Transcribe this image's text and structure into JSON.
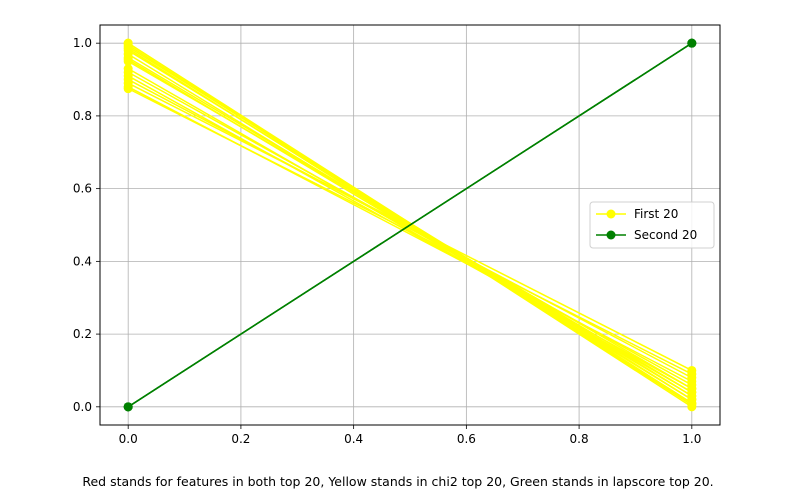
{
  "chart_data": {
    "type": "line",
    "title": "",
    "xlabel": "",
    "ylabel": "",
    "xlim": [
      -0.05,
      1.05
    ],
    "ylim": [
      -0.05,
      1.05
    ],
    "x_ticks": [
      0.0,
      0.2,
      0.4,
      0.6,
      0.8,
      1.0
    ],
    "y_ticks": [
      0.0,
      0.2,
      0.4,
      0.6,
      0.8,
      1.0
    ],
    "x_tick_labels": [
      "0.0",
      "0.2",
      "0.4",
      "0.6",
      "0.8",
      "1.0"
    ],
    "y_tick_labels": [
      "0.0",
      "0.2",
      "0.4",
      "0.6",
      "0.8",
      "1.0"
    ],
    "grid": true,
    "legend_position": "center-right",
    "series": [
      {
        "name": "First 20",
        "color": "#ffff00",
        "marker": "circle",
        "lines": [
          [
            [
              0,
              1.0
            ],
            [
              1,
              0.0
            ]
          ],
          [
            [
              0,
              1.0
            ],
            [
              1,
              0.01
            ]
          ],
          [
            [
              0,
              0.995
            ],
            [
              1,
              0.005
            ]
          ],
          [
            [
              0,
              0.99
            ],
            [
              1,
              0.02
            ]
          ],
          [
            [
              0,
              0.985
            ],
            [
              1,
              0.01
            ]
          ],
          [
            [
              0,
              0.98
            ],
            [
              1,
              0.03
            ]
          ],
          [
            [
              0,
              0.97
            ],
            [
              1,
              0.02
            ]
          ],
          [
            [
              0,
              0.96
            ],
            [
              1,
              0.04
            ]
          ],
          [
            [
              0,
              0.955
            ],
            [
              1,
              0.03
            ]
          ],
          [
            [
              0,
              0.95
            ],
            [
              1,
              0.05
            ]
          ],
          [
            [
              0,
              0.93
            ],
            [
              1,
              0.04
            ]
          ],
          [
            [
              0,
              0.92
            ],
            [
              1,
              0.06
            ]
          ],
          [
            [
              0,
              0.91
            ],
            [
              1,
              0.05
            ]
          ],
          [
            [
              0,
              0.9
            ],
            [
              1,
              0.08
            ]
          ],
          [
            [
              0,
              0.89
            ],
            [
              1,
              0.1
            ]
          ],
          [
            [
              0,
              0.88
            ],
            [
              1,
              0.07
            ]
          ],
          [
            [
              0,
              0.875
            ],
            [
              1,
              0.09
            ]
          ]
        ]
      },
      {
        "name": "Second 20",
        "color": "#008000",
        "marker": "circle",
        "lines": [
          [
            [
              0,
              0.0
            ],
            [
              1,
              1.0
            ]
          ],
          [
            [
              0,
              0.0
            ],
            [
              1,
              1.0
            ]
          ],
          [
            [
              0,
              0.0
            ],
            [
              1,
              1.0
            ]
          ]
        ]
      }
    ],
    "caption": "Red stands for features in both top 20, Yellow stands in chi2 top 20, Green stands in lapscore top 20."
  }
}
